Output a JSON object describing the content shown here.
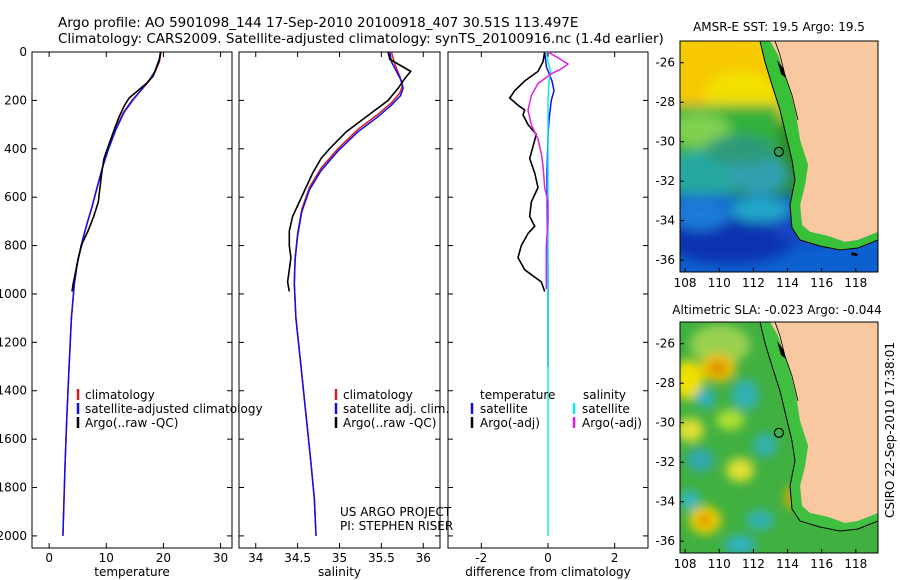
{
  "header": {
    "line1": "Argo profile: AO 5901098_144 17-Sep-2010 20100918_407 30.51S 113.497E",
    "line2": "Climatology: CARS2009. Satellite-adjusted climatology: synTS_20100916.nc (1.4d earlier)"
  },
  "side_label": "CSIRO 22-Sep-2010 17:38:01",
  "colors": {
    "climatology": "#d42020",
    "satellite": "#1010ee",
    "argo": "#000000",
    "salinity_sat": "#10e8e8",
    "salinity_argo": "#e020e0"
  },
  "chart_data": [
    {
      "type": "line",
      "id": "temperature",
      "xlabel": "temperature",
      "ylabel": "",
      "xlim": [
        -3,
        32
      ],
      "ylim": [
        2050,
        0
      ],
      "xticks": [
        0,
        10,
        20,
        30
      ],
      "yticks": [
        0,
        200,
        400,
        600,
        800,
        1000,
        1200,
        1400,
        1600,
        1800,
        2000
      ],
      "legend": [
        "climatology",
        "satellite-adjusted climatology",
        "Argo(..raw -QC)"
      ],
      "series": [
        {
          "name": "climatology",
          "color": "climatology",
          "points": [
            [
              19.6,
              0
            ],
            [
              19.3,
              40
            ],
            [
              18.6,
              80
            ],
            [
              17.5,
              120
            ],
            [
              16.0,
              160
            ],
            [
              14.5,
              200
            ],
            [
              13.0,
              250
            ],
            [
              11.6,
              320
            ],
            [
              10.3,
              400
            ],
            [
              9.3,
              480
            ],
            [
              8.4,
              560
            ],
            [
              7.5,
              640
            ],
            [
              6.5,
              720
            ],
            [
              5.6,
              800
            ],
            [
              4.9,
              880
            ],
            [
              4.4,
              960
            ],
            [
              3.9,
              1100
            ],
            [
              3.5,
              1300
            ],
            [
              3.1,
              1500
            ],
            [
              2.8,
              1700
            ],
            [
              2.6,
              1850
            ],
            [
              2.4,
              2000
            ]
          ]
        },
        {
          "name": "satellite-adjusted climatology",
          "color": "satellite",
          "points": [
            [
              19.5,
              0
            ],
            [
              19.2,
              40
            ],
            [
              18.5,
              80
            ],
            [
              17.4,
              120
            ],
            [
              16.0,
              160
            ],
            [
              14.6,
              200
            ],
            [
              13.1,
              250
            ],
            [
              11.7,
              320
            ],
            [
              10.4,
              400
            ],
            [
              9.3,
              480
            ],
            [
              8.4,
              560
            ],
            [
              7.5,
              640
            ],
            [
              6.5,
              720
            ],
            [
              5.6,
              800
            ],
            [
              4.9,
              880
            ],
            [
              4.4,
              960
            ],
            [
              3.9,
              1100
            ],
            [
              3.5,
              1300
            ],
            [
              3.1,
              1500
            ],
            [
              2.8,
              1700
            ],
            [
              2.6,
              1850
            ],
            [
              2.4,
              2000
            ]
          ]
        },
        {
          "name": "Argo(..raw -QC)",
          "color": "argo",
          "points": [
            [
              19.5,
              0
            ],
            [
              19.3,
              30
            ],
            [
              18.8,
              60
            ],
            [
              18.2,
              100
            ],
            [
              17.0,
              130
            ],
            [
              15.5,
              160
            ],
            [
              14.0,
              190
            ],
            [
              13.2,
              220
            ],
            [
              12.2,
              270
            ],
            [
              11.4,
              320
            ],
            [
              10.5,
              380
            ],
            [
              9.6,
              440
            ],
            [
              9.2,
              500
            ],
            [
              8.9,
              560
            ],
            [
              8.6,
              620
            ],
            [
              7.8,
              680
            ],
            [
              6.8,
              740
            ],
            [
              5.8,
              790
            ],
            [
              5.1,
              850
            ],
            [
              4.7,
              900
            ],
            [
              4.2,
              960
            ],
            [
              4.0,
              990
            ]
          ]
        }
      ]
    },
    {
      "type": "line",
      "id": "salinity",
      "xlabel": "salinity",
      "ylabel": "",
      "xlim": [
        33.8,
        36.2
      ],
      "ylim": [
        2050,
        0
      ],
      "xticks": [
        34,
        34.5,
        35,
        35.5,
        36
      ],
      "yticks": [
        0,
        200,
        400,
        600,
        800,
        1000,
        1200,
        1400,
        1600,
        1800,
        2000
      ],
      "legend": [
        "climatology",
        "satellite adj. clim.",
        "Argo(..raw -QC)"
      ],
      "annotation": [
        "US ARGO PROJECT",
        "PI: STEPHEN RISER"
      ],
      "series": [
        {
          "name": "climatology",
          "color": "climatology",
          "points": [
            [
              35.62,
              0
            ],
            [
              35.66,
              50
            ],
            [
              35.72,
              100
            ],
            [
              35.75,
              140
            ],
            [
              35.72,
              170
            ],
            [
              35.62,
              210
            ],
            [
              35.45,
              260
            ],
            [
              35.22,
              320
            ],
            [
              34.98,
              400
            ],
            [
              34.78,
              480
            ],
            [
              34.64,
              560
            ],
            [
              34.55,
              650
            ],
            [
              34.5,
              750
            ],
            [
              34.47,
              850
            ],
            [
              34.46,
              950
            ],
            [
              34.48,
              1100
            ],
            [
              34.54,
              1300
            ],
            [
              34.6,
              1500
            ],
            [
              34.66,
              1700
            ],
            [
              34.7,
              1850
            ],
            [
              34.72,
              2000
            ]
          ]
        },
        {
          "name": "satellite adj. clim.",
          "color": "satellite",
          "points": [
            [
              35.6,
              0
            ],
            [
              35.62,
              40
            ],
            [
              35.68,
              80
            ],
            [
              35.74,
              120
            ],
            [
              35.76,
              150
            ],
            [
              35.73,
              180
            ],
            [
              35.62,
              220
            ],
            [
              35.45,
              270
            ],
            [
              35.22,
              330
            ],
            [
              34.98,
              410
            ],
            [
              34.78,
              490
            ],
            [
              34.64,
              570
            ],
            [
              34.55,
              660
            ],
            [
              34.5,
              760
            ],
            [
              34.47,
              860
            ],
            [
              34.46,
              960
            ],
            [
              34.48,
              1100
            ],
            [
              34.54,
              1300
            ],
            [
              34.6,
              1500
            ],
            [
              34.66,
              1700
            ],
            [
              34.7,
              1850
            ],
            [
              34.72,
              2000
            ]
          ]
        },
        {
          "name": "Argo(..raw -QC)",
          "color": "argo",
          "points": [
            [
              35.58,
              0
            ],
            [
              35.6,
              30
            ],
            [
              35.75,
              60
            ],
            [
              35.85,
              80
            ],
            [
              35.78,
              110
            ],
            [
              35.7,
              150
            ],
            [
              35.58,
              200
            ],
            [
              35.35,
              260
            ],
            [
              35.08,
              330
            ],
            [
              34.88,
              400
            ],
            [
              34.78,
              440
            ],
            [
              34.68,
              500
            ],
            [
              34.6,
              560
            ],
            [
              34.52,
              620
            ],
            [
              34.44,
              680
            ],
            [
              34.4,
              740
            ],
            [
              34.4,
              800
            ],
            [
              34.42,
              850
            ],
            [
              34.4,
              900
            ],
            [
              34.38,
              950
            ],
            [
              34.4,
              990
            ]
          ]
        }
      ]
    },
    {
      "type": "line",
      "id": "difference",
      "xlabel": "difference from climatology",
      "ylabel": "",
      "xlim": [
        -3,
        3
      ],
      "ylim": [
        2050,
        0
      ],
      "xticks": [
        -2,
        0,
        2
      ],
      "yticks": [
        0,
        200,
        400,
        600,
        800,
        1000,
        1200,
        1400,
        1600,
        1800,
        2000
      ],
      "legend_temperature_head": "temperature",
      "legend_salinity_head": "salinity",
      "legend_temperature": [
        "satellite",
        "Argo(-adj)"
      ],
      "legend_salinity": [
        "satellite",
        "Argo(-adj)"
      ],
      "series": [
        {
          "name": "satellite",
          "group": "temperature",
          "color": "satellite",
          "points": [
            [
              -0.1,
              0
            ],
            [
              -0.05,
              60
            ],
            [
              0.12,
              120
            ],
            [
              0.18,
              160
            ],
            [
              0.1,
              200
            ],
            [
              0.03,
              280
            ],
            [
              0.0,
              350
            ],
            [
              -0.03,
              500
            ],
            [
              -0.02,
              700
            ],
            [
              0.0,
              900
            ],
            [
              0.0,
              1100
            ],
            [
              0.0,
              1300
            ]
          ]
        },
        {
          "name": "Argo(-adj)",
          "group": "temperature",
          "color": "argo",
          "points": [
            [
              -0.1,
              0
            ],
            [
              -0.15,
              40
            ],
            [
              -0.3,
              80
            ],
            [
              -0.7,
              120
            ],
            [
              -1.0,
              160
            ],
            [
              -1.15,
              190
            ],
            [
              -0.9,
              220
            ],
            [
              -0.7,
              240
            ],
            [
              -0.75,
              260
            ],
            [
              -0.6,
              300
            ],
            [
              -0.35,
              340
            ],
            [
              -0.45,
              390
            ],
            [
              -0.55,
              440
            ],
            [
              -0.4,
              500
            ],
            [
              -0.3,
              560
            ],
            [
              -0.5,
              620
            ],
            [
              -0.55,
              680
            ],
            [
              -0.4,
              720
            ],
            [
              -0.6,
              750
            ],
            [
              -0.8,
              800
            ],
            [
              -0.9,
              850
            ],
            [
              -0.7,
              900
            ],
            [
              -0.2,
              950
            ],
            [
              -0.1,
              990
            ]
          ]
        },
        {
          "name": "satellite",
          "group": "salinity",
          "color": "salinity_sat",
          "points": [
            [
              -0.05,
              0
            ],
            [
              0.0,
              40
            ],
            [
              0.08,
              80
            ],
            [
              0.03,
              120
            ],
            [
              0.0,
              200
            ],
            [
              0.0,
              500
            ],
            [
              0.0,
              1000
            ],
            [
              0.0,
              1500
            ],
            [
              0.0,
              2000
            ]
          ]
        },
        {
          "name": "Argo(-adj)",
          "group": "salinity",
          "color": "salinity_argo",
          "points": [
            [
              0.0,
              0
            ],
            [
              0.25,
              20
            ],
            [
              0.6,
              50
            ],
            [
              0.4,
              70
            ],
            [
              0.1,
              90
            ],
            [
              -0.3,
              130
            ],
            [
              -0.5,
              180
            ],
            [
              -0.6,
              240
            ],
            [
              -0.5,
              300
            ],
            [
              -0.3,
              360
            ],
            [
              -0.2,
              420
            ],
            [
              -0.15,
              470
            ],
            [
              -0.1,
              560
            ],
            [
              0.0,
              620
            ],
            [
              0.0,
              700
            ],
            [
              -0.05,
              800
            ],
            [
              -0.05,
              900
            ],
            [
              -0.05,
              980
            ]
          ]
        }
      ]
    },
    {
      "type": "heatmap",
      "id": "sst_map",
      "title": "AMSR-E SST: 19.5 Argo: 19.5",
      "xlim": [
        107.7,
        119.3
      ],
      "ylim": [
        -36.6,
        -24.9
      ],
      "xticks": [
        108,
        110,
        112,
        114,
        116,
        118
      ],
      "yticks": [
        -26,
        -28,
        -30,
        -32,
        -34,
        -36
      ],
      "marker": [
        113.497,
        -30.51
      ]
    },
    {
      "type": "heatmap",
      "id": "sla_map",
      "title": "Altimetric SLA: -0.023 Argo: -0.044",
      "xlim": [
        107.7,
        119.3
      ],
      "ylim": [
        -36.6,
        -24.9
      ],
      "xticks": [
        108,
        110,
        112,
        114,
        116,
        118
      ],
      "yticks": [
        -26,
        -28,
        -30,
        -32,
        -34,
        -36
      ],
      "marker": [
        113.497,
        -30.51
      ]
    }
  ]
}
